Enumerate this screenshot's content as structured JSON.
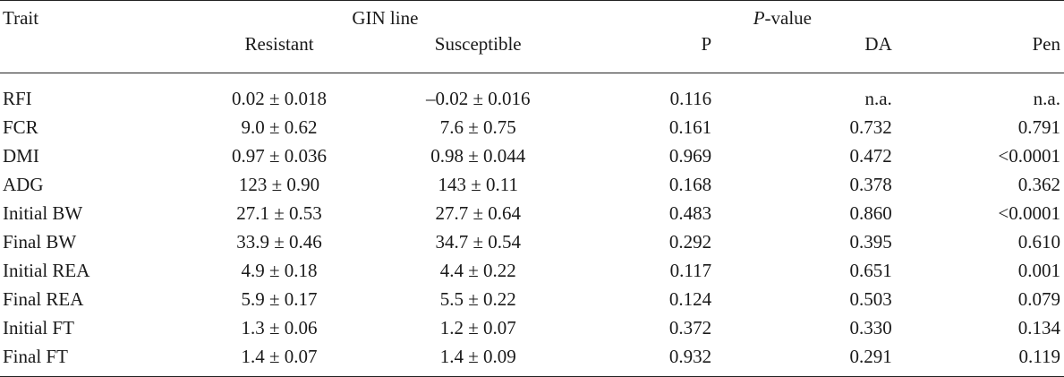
{
  "header": {
    "trait": "Trait",
    "gin_line": "GIN line",
    "pvalue_italic": "P",
    "pvalue_rest": "-value",
    "columns": {
      "resistant": "Resistant",
      "susceptible": "Susceptible",
      "p": "P",
      "da": "DA",
      "pen": "Pen"
    }
  },
  "rows": [
    {
      "trait": "RFI",
      "resistant": "0.02 ± 0.018",
      "susceptible": "–0.02 ± 0.016",
      "p": "0.116",
      "da": "n.a.",
      "pen": "n.a."
    },
    {
      "trait": "FCR",
      "resistant": "9.0 ± 0.62",
      "susceptible": "7.6 ± 0.75",
      "p": "0.161",
      "da": "0.732",
      "pen": "0.791"
    },
    {
      "trait": "DMI",
      "resistant": "0.97 ± 0.036",
      "susceptible": "0.98 ± 0.044",
      "p": "0.969",
      "da": "0.472",
      "pen": "<0.0001"
    },
    {
      "trait": "ADG",
      "resistant": "123 ± 0.90",
      "susceptible": "143 ± 0.11",
      "p": "0.168",
      "da": "0.378",
      "pen": "0.362"
    },
    {
      "trait": "Initial BW",
      "resistant": "27.1 ± 0.53",
      "susceptible": "27.7 ± 0.64",
      "p": "0.483",
      "da": "0.860",
      "pen": "<0.0001"
    },
    {
      "trait": "Final BW",
      "resistant": "33.9 ± 0.46",
      "susceptible": "34.7 ± 0.54",
      "p": "0.292",
      "da": "0.395",
      "pen": "0.610"
    },
    {
      "trait": "Initial REA",
      "resistant": "4.9 ± 0.18",
      "susceptible": "4.4 ± 0.22",
      "p": "0.117",
      "da": "0.651",
      "pen": "0.001"
    },
    {
      "trait": "Final REA",
      "resistant": "5.9 ± 0.17",
      "susceptible": "5.5 ± 0.22",
      "p": "0.124",
      "da": "0.503",
      "pen": "0.079"
    },
    {
      "trait": "Initial FT",
      "resistant": "1.3 ± 0.06",
      "susceptible": "1.2 ± 0.07",
      "p": "0.372",
      "da": "0.330",
      "pen": "0.134"
    },
    {
      "trait": "Final FT",
      "resistant": "1.4 ± 0.07",
      "susceptible": "1.4 ± 0.09",
      "p": "0.932",
      "da": "0.291",
      "pen": "0.119"
    }
  ]
}
